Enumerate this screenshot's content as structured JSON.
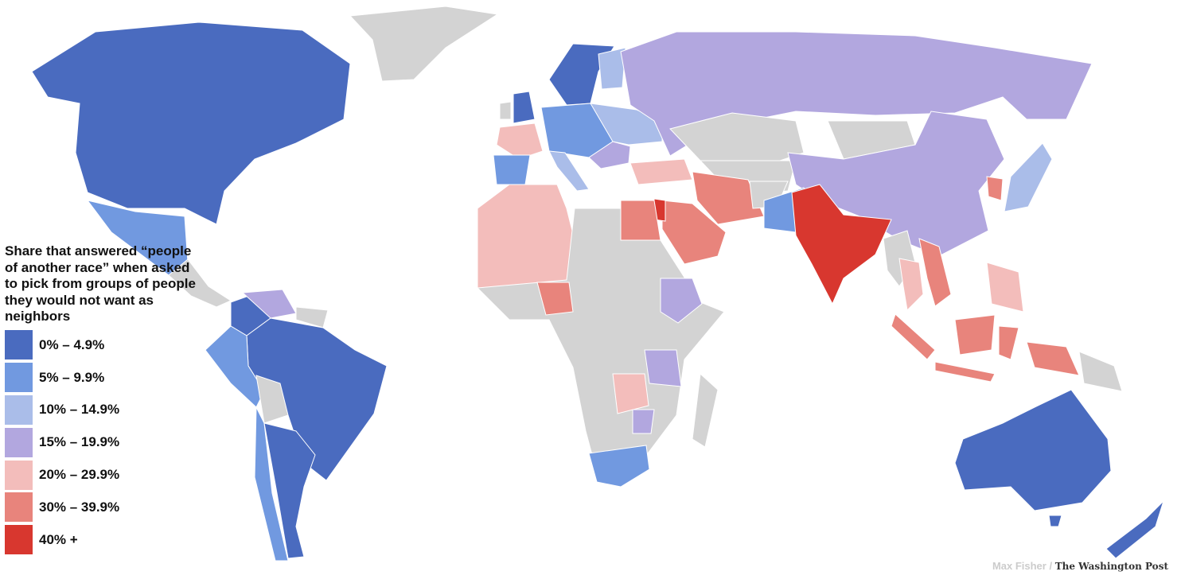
{
  "legend": {
    "title": "Share that answered “people of another race” when asked to pick from groups of people they would not want as neighbors",
    "items": [
      {
        "label": "0% – 4.9%",
        "color": "#4a6bbf"
      },
      {
        "label": "5% – 9.9%",
        "color": "#7199e0"
      },
      {
        "label": "10% – 14.9%",
        "color": "#aabde9"
      },
      {
        "label": "15% – 19.9%",
        "color": "#b2a7df"
      },
      {
        "label": "20% – 29.9%",
        "color": "#f3bdbb"
      },
      {
        "label": "30% – 39.9%",
        "color": "#e8847c"
      },
      {
        "label": "40% +",
        "color": "#d8372f"
      }
    ],
    "no_data_color": "#d3d3d3"
  },
  "credit": {
    "author": "Max Fisher /",
    "publication": "The Washington Post"
  }
}
